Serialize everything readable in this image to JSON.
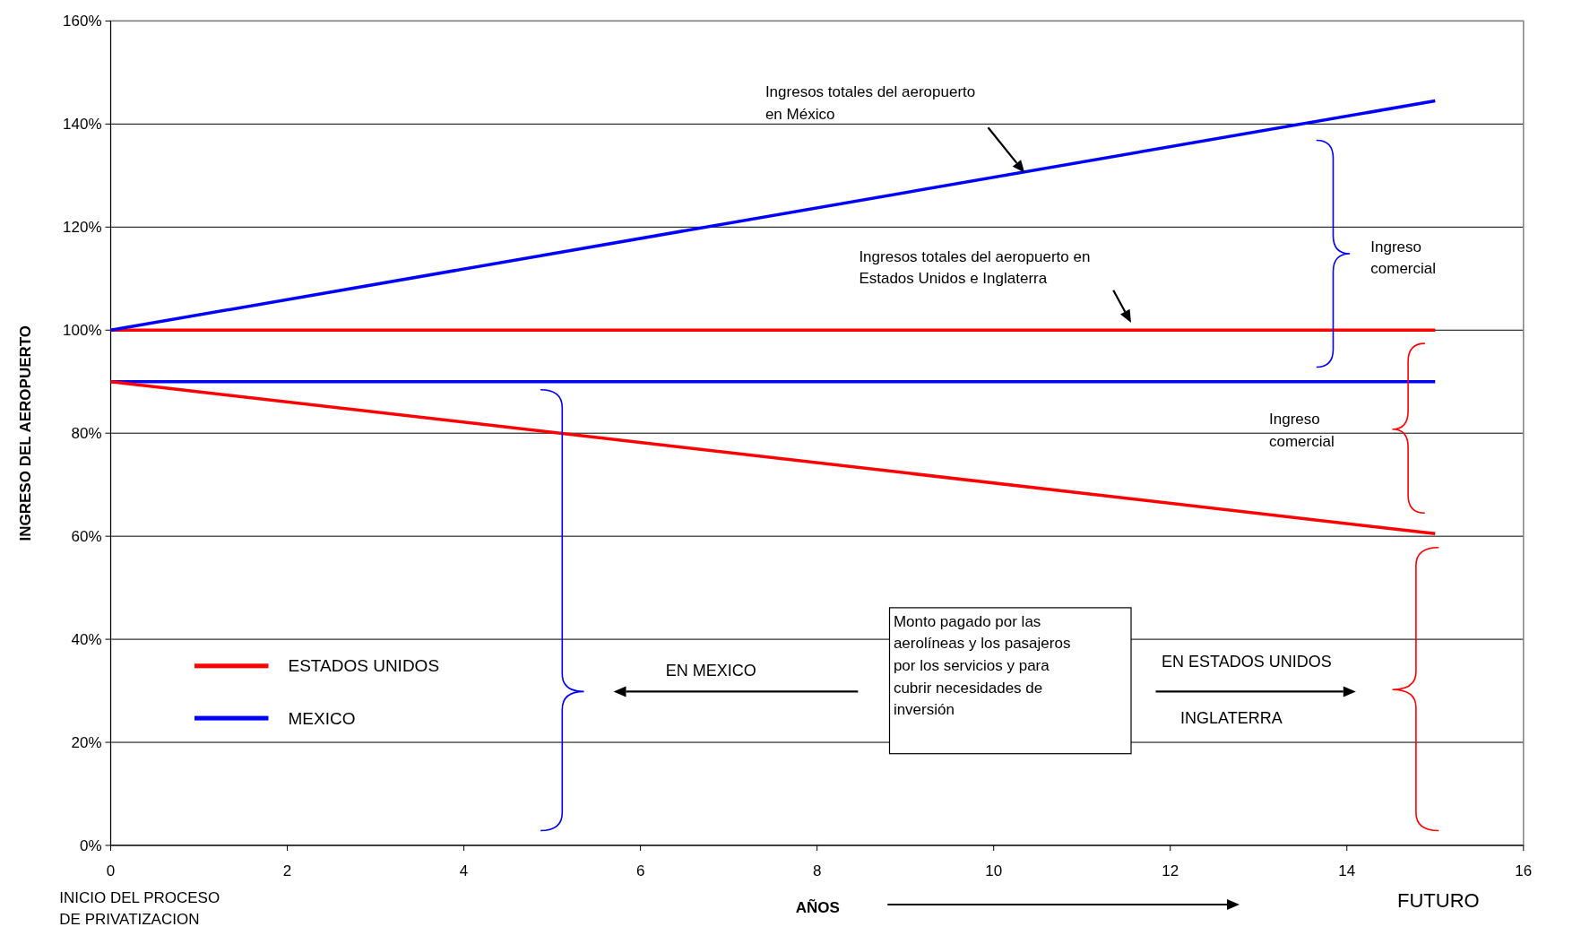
{
  "chart_data": {
    "type": "line",
    "ylabel": "INGRESO DEL AEROPUERTO",
    "xlabel": "AÑOS",
    "xlim": [
      0,
      16
    ],
    "xticks": [
      0,
      2,
      4,
      6,
      8,
      10,
      12,
      14,
      16
    ],
    "ylim": [
      0,
      160
    ],
    "yticks": [
      {
        "value": 0,
        "label": "0%"
      },
      {
        "value": 20,
        "label": "20%"
      },
      {
        "value": 40,
        "label": "40%"
      },
      {
        "value": 60,
        "label": "60%"
      },
      {
        "value": 80,
        "label": "80%"
      },
      {
        "value": 100,
        "label": "100%"
      },
      {
        "value": 120,
        "label": "120%"
      },
      {
        "value": 140,
        "label": "140%"
      },
      {
        "value": 160,
        "label": "160%"
      }
    ],
    "grid": "y",
    "legend": "bottom left",
    "line_style": "solid",
    "marker": "none",
    "x": [
      0,
      15
    ],
    "series": [
      {
        "name": "ESTADOS UNIDOS",
        "color": "#ff0000",
        "values": [
          100,
          100
        ]
      },
      {
        "name": "MEXICO",
        "color": "#0000ff",
        "values": [
          90,
          90
        ]
      },
      {
        "color": "#ff0000",
        "values": [
          90,
          60.5
        ]
      },
      {
        "color": "#0000ff",
        "values": [
          100,
          144.5
        ]
      }
    ],
    "annotations": [
      "Ingresos totales del aeropuerto\nen México",
      "Ingresos totales del aeropuerto en\nEstados Unidos e Inglaterra",
      "Ingreso\ncomercial",
      "Ingreso\ncomercial",
      "EN MEXICO",
      "Monto pagado por las\naerolíneas y los pasajeros\npor los servicios y para\ncubrir necesidades de\ninversión",
      "EN ESTADOS UNIDOS",
      "INGLATERRA",
      "INICIO DEL PROCESO\nDE PRIVATIZACION",
      "FUTURO"
    ]
  }
}
